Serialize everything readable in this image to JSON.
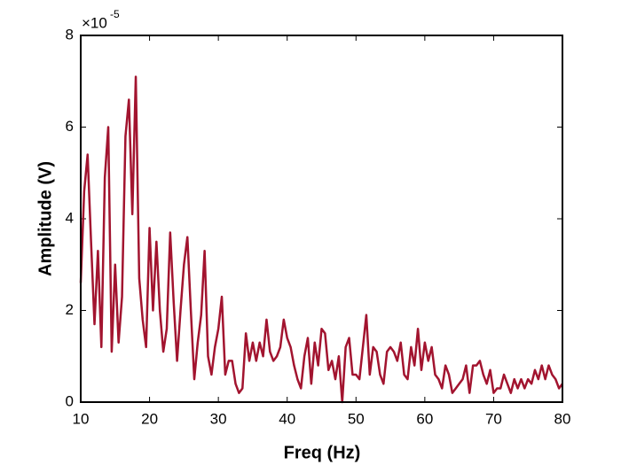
{
  "chart_data": {
    "type": "line",
    "xlabel": "Freq (Hz)",
    "ylabel": "Amplitude (V)",
    "exponent_label": {
      "base": "×10",
      "power": "-5"
    },
    "x": [
      10,
      10.5,
      11,
      11.5,
      12,
      12.5,
      13,
      13.5,
      14,
      14.5,
      15,
      15.5,
      16,
      16.5,
      17,
      17.5,
      18,
      18.5,
      19,
      19.5,
      20,
      20.5,
      21,
      21.5,
      22,
      22.5,
      23,
      23.5,
      24,
      24.5,
      25,
      25.5,
      26,
      26.5,
      27,
      27.5,
      28,
      28.5,
      29,
      29.5,
      30,
      30.5,
      31,
      31.5,
      32,
      32.5,
      33,
      33.5,
      34,
      34.5,
      35,
      35.5,
      36,
      36.5,
      37,
      37.5,
      38,
      38.5,
      39,
      39.5,
      40,
      40.5,
      41,
      41.5,
      42,
      42.5,
      43,
      43.5,
      44,
      44.5,
      45,
      45.5,
      46,
      46.5,
      47,
      47.5,
      48,
      48.5,
      49,
      49.5,
      50,
      50.5,
      51,
      51.5,
      52,
      52.5,
      53,
      53.5,
      54,
      54.5,
      55,
      55.5,
      56,
      56.5,
      57,
      57.5,
      58,
      58.5,
      59,
      59.5,
      60,
      60.5,
      61,
      61.5,
      62,
      62.5,
      63,
      63.5,
      64,
      64.5,
      65,
      65.5,
      66,
      66.5,
      67,
      67.5,
      68,
      68.5,
      69,
      69.5,
      70,
      70.5,
      71,
      71.5,
      72,
      72.5,
      73,
      73.5,
      74,
      74.5,
      75,
      75.5,
      76,
      76.5,
      77,
      77.5,
      78,
      78.5,
      79,
      79.5,
      80
    ],
    "series": [
      {
        "color": "#a2142f",
        "values": [
          2.6,
          4.6,
          5.4,
          3.5,
          1.7,
          3.3,
          1.2,
          4.9,
          6.0,
          1.1,
          3.0,
          1.3,
          2.3,
          5.8,
          6.6,
          4.1,
          7.1,
          2.7,
          1.8,
          1.2,
          3.8,
          2.0,
          3.5,
          2.0,
          1.1,
          1.6,
          3.7,
          2.2,
          0.9,
          2.0,
          3.0,
          3.6,
          2.0,
          0.5,
          1.3,
          1.9,
          3.3,
          1.0,
          0.6,
          1.2,
          1.6,
          2.3,
          0.6,
          0.9,
          0.9,
          0.4,
          0.2,
          0.3,
          1.5,
          0.9,
          1.3,
          0.9,
          1.3,
          1.0,
          1.8,
          1.1,
          0.9,
          1.0,
          1.2,
          1.8,
          1.4,
          1.2,
          0.8,
          0.5,
          0.3,
          1.0,
          1.4,
          0.4,
          1.3,
          0.8,
          1.6,
          1.5,
          0.7,
          0.9,
          0.5,
          1.0,
          0.0,
          1.2,
          1.4,
          0.6,
          0.6,
          0.5,
          1.2,
          1.9,
          0.6,
          1.2,
          1.1,
          0.6,
          0.4,
          1.1,
          1.2,
          1.1,
          0.9,
          1.3,
          0.6,
          0.5,
          1.2,
          0.8,
          1.6,
          0.7,
          1.3,
          0.9,
          1.2,
          0.6,
          0.5,
          0.3,
          0.8,
          0.6,
          0.2,
          0.3,
          0.4,
          0.5,
          0.8,
          0.2,
          0.8,
          0.8,
          0.9,
          0.6,
          0.4,
          0.7,
          0.2,
          0.3,
          0.3,
          0.6,
          0.4,
          0.2,
          0.5,
          0.3,
          0.5,
          0.3,
          0.5,
          0.4,
          0.7,
          0.5,
          0.8,
          0.5,
          0.8,
          0.6,
          0.5,
          0.3,
          0.4
        ]
      }
    ],
    "xlim": [
      10,
      80
    ],
    "xticks": [
      10,
      20,
      30,
      40,
      50,
      60,
      70,
      80
    ],
    "ylim": [
      0,
      8
    ],
    "yticks": [
      0,
      2,
      4,
      6,
      8
    ],
    "grid": false
  }
}
